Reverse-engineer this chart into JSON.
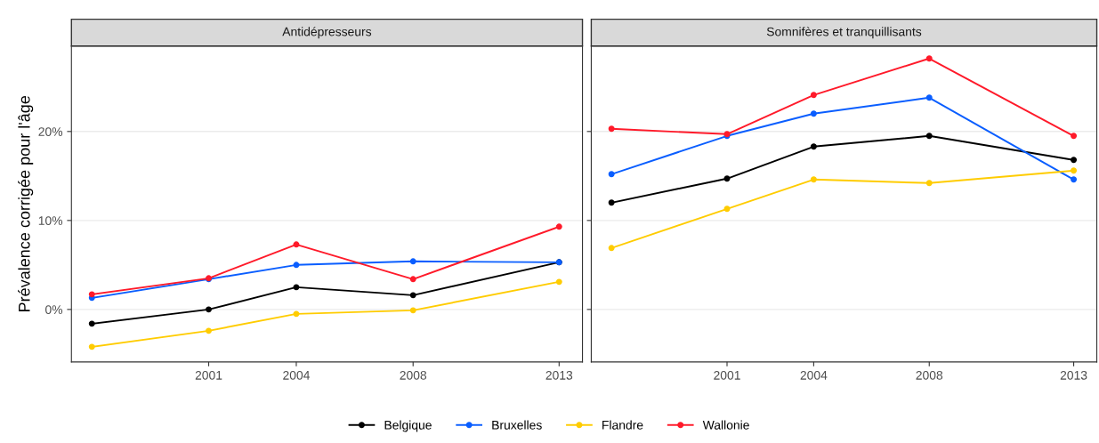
{
  "chart_data": [
    {
      "type": "line",
      "title": "Antidépresseurs",
      "ylabel": "Prévalence corrigée pour l'âge",
      "x": [
        1997,
        2001,
        2004,
        2008,
        2013
      ],
      "xlim": [
        1996.3,
        2013.8
      ],
      "xticks": [
        2001,
        2004,
        2008,
        2013
      ],
      "ylim": [
        -5.9,
        29.6
      ],
      "yticks": [
        {
          "value": 0,
          "label": "0%"
        },
        {
          "value": 10,
          "label": "10%"
        },
        {
          "value": 20,
          "label": "20%"
        }
      ],
      "grid": "y",
      "marker": "circle",
      "line_style": "solid",
      "legend": "bottom",
      "series": [
        {
          "name": "Belgique",
          "color": "#000000",
          "values": [
            -1.6,
            0.0,
            2.5,
            1.6,
            5.3
          ]
        },
        {
          "name": "Bruxelles",
          "color": "#0a5eff",
          "values": [
            1.3,
            3.4,
            5.0,
            5.4,
            5.3
          ]
        },
        {
          "name": "Flandre",
          "color": "#ffcc00",
          "values": [
            -4.2,
            -2.4,
            -0.5,
            -0.1,
            3.1
          ]
        },
        {
          "name": "Wallonie",
          "color": "#ff1a2a",
          "values": [
            1.7,
            3.5,
            7.3,
            3.4,
            9.3
          ]
        }
      ]
    },
    {
      "type": "line",
      "title": "Somnifères et tranquillisants",
      "x": [
        1997,
        2001,
        2004,
        2008,
        2013
      ],
      "xlim": [
        1996.3,
        2013.8
      ],
      "xticks": [
        2001,
        2004,
        2008,
        2013
      ],
      "ylim": [
        -5.9,
        29.6
      ],
      "yticks": [
        {
          "value": 0,
          "label": null
        },
        {
          "value": 10,
          "label": null
        },
        {
          "value": 20,
          "label": null
        }
      ],
      "tick_labels": "x",
      "grid": "y",
      "marker": "circle",
      "line_style": "solid",
      "legend": "bottom",
      "series": [
        {
          "name": "Belgique",
          "color": "#000000",
          "values": [
            12.0,
            14.7,
            18.3,
            19.5,
            16.8
          ]
        },
        {
          "name": "Bruxelles",
          "color": "#0a5eff",
          "values": [
            15.2,
            19.5,
            22.0,
            23.8,
            14.6
          ]
        },
        {
          "name": "Flandre",
          "color": "#ffcc00",
          "values": [
            6.9,
            11.3,
            14.6,
            14.2,
            15.6
          ]
        },
        {
          "name": "Wallonie",
          "color": "#ff1a2a",
          "values": [
            20.3,
            19.7,
            24.1,
            28.2,
            19.5
          ]
        }
      ]
    }
  ]
}
